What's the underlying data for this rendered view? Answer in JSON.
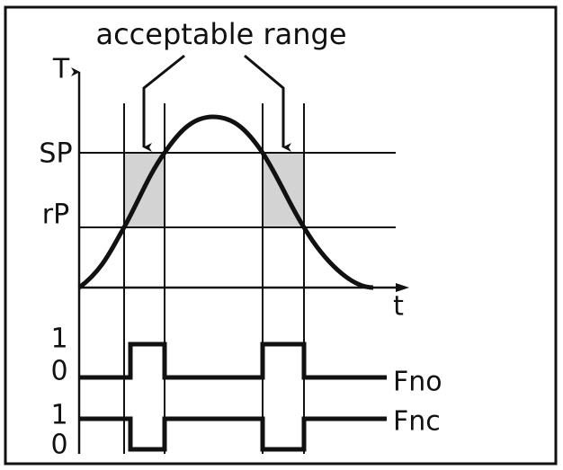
{
  "annotation": "acceptable range",
  "axes": {
    "y_label": "T",
    "x_label": "t"
  },
  "levels": {
    "sp": "SP",
    "rp": "rP"
  },
  "outputs": [
    {
      "name": "Fno",
      "high": "1",
      "low": "0"
    },
    {
      "name": "Fnc",
      "high": "1",
      "low": "0"
    }
  ]
}
